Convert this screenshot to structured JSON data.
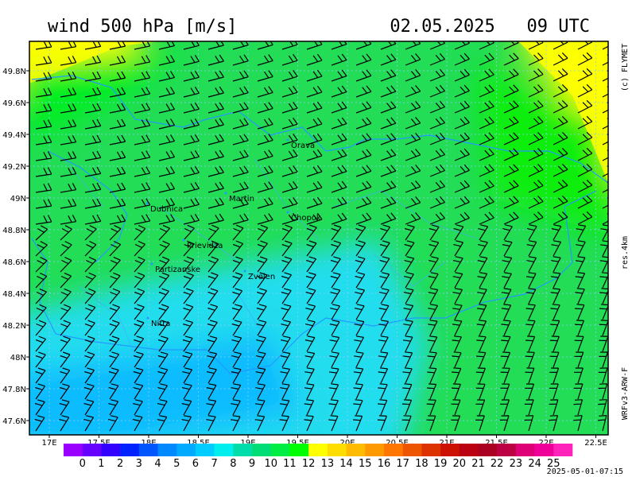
{
  "header": {
    "title": "wind 500 hPa [m/s]",
    "valid_time": "02.05.2025   09 UTC"
  },
  "side_labels": {
    "credit": "(c) FLYMET",
    "resolution": "res.4km",
    "model": "WRFv3-ARW-F"
  },
  "issued": "2025-05-01-07:15",
  "map": {
    "lat_ticks": [
      {
        "value": 49.8,
        "label": "49.8N"
      },
      {
        "value": 49.6,
        "label": "49.6N"
      },
      {
        "value": 49.4,
        "label": "49.4N"
      },
      {
        "value": 49.2,
        "label": "49.2N"
      },
      {
        "value": 49,
        "label": "49N"
      },
      {
        "value": 48.8,
        "label": "48.8N"
      },
      {
        "value": 48.6,
        "label": "48.6N"
      },
      {
        "value": 48.4,
        "label": "48.4N"
      },
      {
        "value": 48.2,
        "label": "48.2N"
      },
      {
        "value": 48,
        "label": "48N"
      },
      {
        "value": 47.8,
        "label": "47.8N"
      },
      {
        "value": 47.6,
        "label": "47.6N"
      }
    ],
    "lon_ticks": [
      {
        "value": 17,
        "label": "17E"
      },
      {
        "value": 17.5,
        "label": "17.5E"
      },
      {
        "value": 18,
        "label": "18E"
      },
      {
        "value": 18.5,
        "label": "18.5E"
      },
      {
        "value": 19,
        "label": "19E"
      },
      {
        "value": 19.5,
        "label": "19.5E"
      },
      {
        "value": 20,
        "label": "20E"
      },
      {
        "value": 20.5,
        "label": "20.5E"
      },
      {
        "value": 21,
        "label": "21E"
      },
      {
        "value": 21.5,
        "label": "21.5E"
      },
      {
        "value": 22,
        "label": "22E"
      },
      {
        "value": 22.5,
        "label": "22.5E"
      }
    ],
    "places": [
      "Orava",
      "Dubnica",
      "Martin",
      "Chopok",
      "Prievidza",
      "Partizanske",
      "Zvolen",
      "Nitra"
    ]
  },
  "colorbar": {
    "labels": [
      0,
      1,
      2,
      3,
      4,
      5,
      6,
      7,
      8,
      9,
      10,
      11,
      12,
      13,
      14,
      15,
      16,
      17,
      18,
      19,
      20,
      21,
      22,
      23,
      24,
      25
    ],
    "colors": [
      "#9900ff",
      "#6600ff",
      "#3300ff",
      "#0022ff",
      "#0055ff",
      "#0088ff",
      "#00aaff",
      "#00ccff",
      "#00eeee",
      "#00ddaa",
      "#00dd77",
      "#00ee44",
      "#00ff00",
      "#ffff00",
      "#ffdd00",
      "#ffbb00",
      "#ff9900",
      "#ff7700",
      "#ee5500",
      "#dd3300",
      "#cc1100",
      "#bb0011",
      "#aa0022",
      "#bb0044",
      "#dd0077",
      "#ee0099",
      "#ff22bb"
    ]
  }
}
